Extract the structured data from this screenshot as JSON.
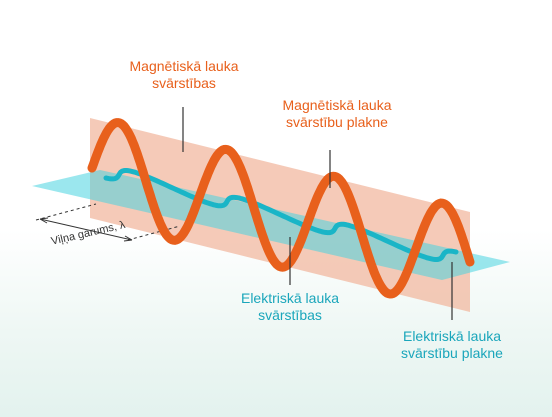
{
  "labels": {
    "magnetic_oscillations": [
      "Magnētiskā lauka",
      "svārstības"
    ],
    "magnetic_plane": [
      "Magnētiskā lauka",
      "svārstību plakne"
    ],
    "electric_oscillations": [
      "Elektriskā lauka",
      "svārstības"
    ],
    "electric_plane": [
      "Elektriskā lauka",
      "svārstību plakne"
    ],
    "wavelength": "Viļņa garums, λ"
  },
  "colors": {
    "magnetic": "#e8601c",
    "magnetic_plane": "#f2b8a0",
    "electric": "#1ab5c7",
    "electric_plane": "#49d3e0",
    "pointer": "#333333"
  },
  "waves": {
    "cycles_shown": 3.5
  }
}
